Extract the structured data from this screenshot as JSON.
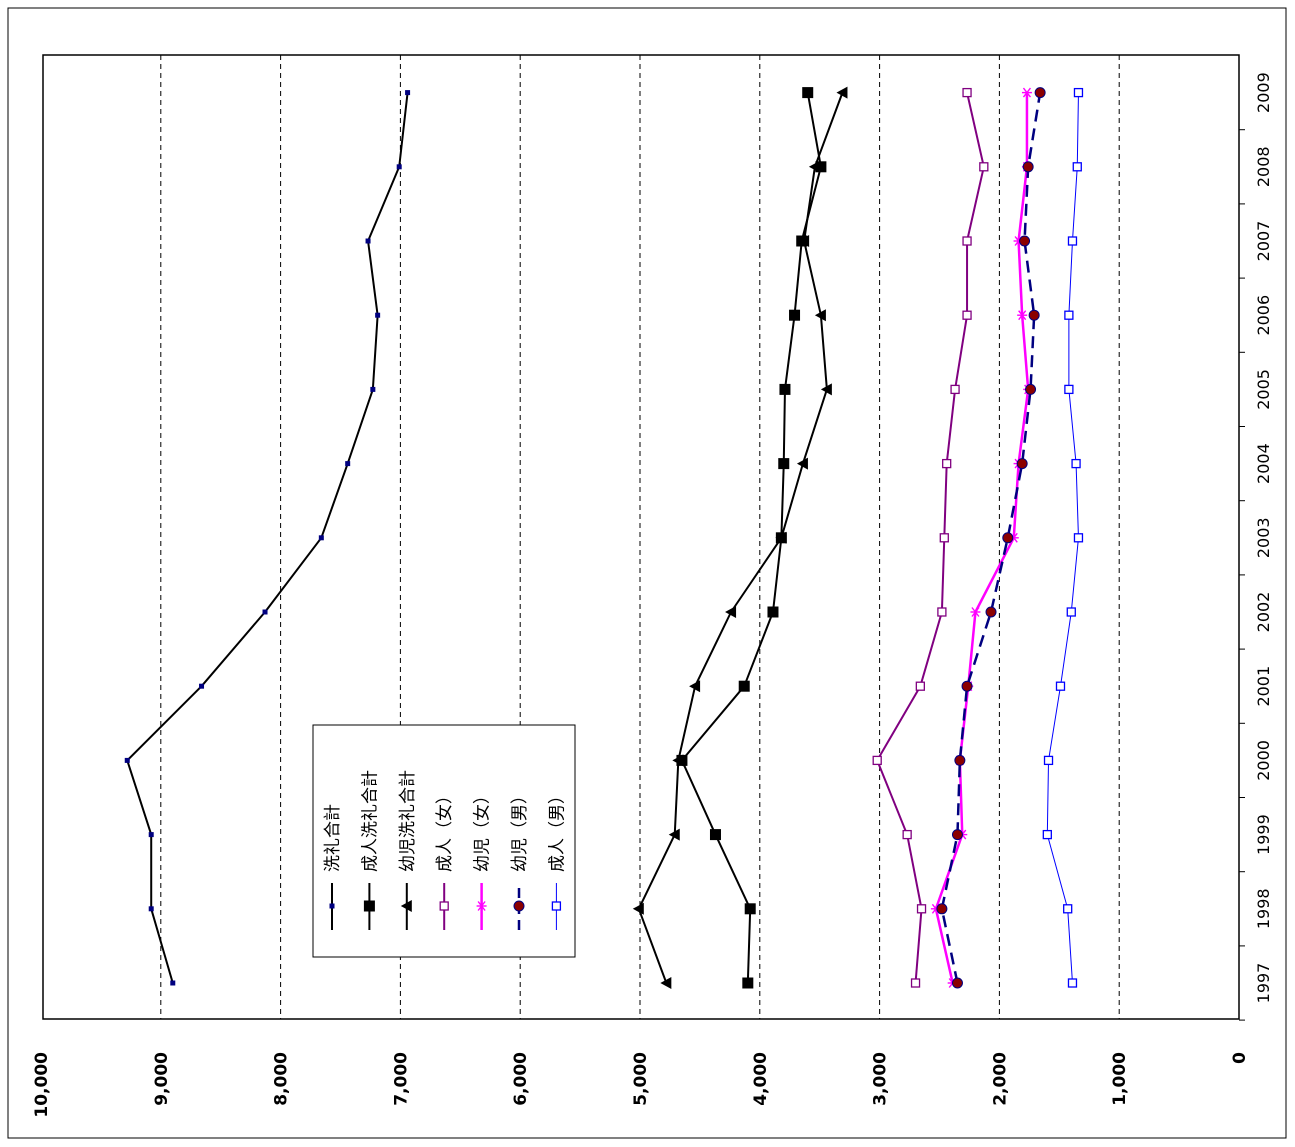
{
  "chart_data": {
    "type": "line",
    "orientation": "rotated-90-clockwise",
    "x": [
      "1997",
      "1998",
      "1999",
      "2000",
      "2001",
      "2002",
      "2003",
      "2004",
      "2005",
      "2006",
      "2007",
      "2008",
      "2009"
    ],
    "y_ticks": [
      "0",
      "1,000",
      "2,000",
      "3,000",
      "4,000",
      "5,000",
      "6,000",
      "7,000",
      "8,000",
      "9,000",
      "10,000"
    ],
    "ylim": [
      0,
      10000
    ],
    "grid": "dashed horizontal gridlines at each 1,000",
    "legend_position": "inside-left",
    "series": [
      {
        "name": "洗礼合計",
        "color": "#000000",
        "marker": "small-square",
        "markerColor": "#000080",
        "dash": "solid",
        "width": 2,
        "values": [
          8900,
          9080,
          9080,
          9280,
          8660,
          8130,
          7660,
          7440,
          7230,
          7190,
          7270,
          7010,
          6940
        ]
      },
      {
        "name": "成人洗礼合計",
        "color": "#000000",
        "marker": "square",
        "markerColor": "#000000",
        "dash": "solid",
        "width": 2,
        "values": [
          4100,
          4080,
          4370,
          4650,
          4130,
          3890,
          3820,
          3800,
          3790,
          3710,
          3650,
          3490,
          3600
        ]
      },
      {
        "name": "幼児洗礼合計",
        "color": "#000000",
        "marker": "triangle",
        "markerColor": "#000000",
        "dash": "solid",
        "width": 2,
        "values": [
          4780,
          5010,
          4710,
          4680,
          4540,
          4240,
          3820,
          3640,
          3440,
          3490,
          3630,
          3540,
          3310
        ]
      },
      {
        "name": "成人（女）",
        "color": "#800080",
        "marker": "open-square",
        "markerColor": "#800080",
        "dash": "solid",
        "width": 2,
        "values": [
          2700,
          2650,
          2770,
          3020,
          2660,
          2480,
          2460,
          2440,
          2370,
          2270,
          2270,
          2130,
          2270
        ]
      },
      {
        "name": "幼児（女）",
        "color": "#FF00FF",
        "marker": "asterisk",
        "markerColor": "#FF00FF",
        "dash": "solid",
        "width": 2.5,
        "values": [
          2390,
          2530,
          2310,
          2330,
          2260,
          2200,
          1880,
          1840,
          1760,
          1810,
          1840,
          1770,
          1770
        ]
      },
      {
        "name": "幼児（男）",
        "color": "#000080",
        "marker": "circle",
        "markerColor": "#8B0000",
        "dash": "dashed",
        "width": 2.5,
        "values": [
          2350,
          2480,
          2350,
          2330,
          2270,
          2070,
          1930,
          1810,
          1740,
          1710,
          1790,
          1760,
          1660
        ]
      },
      {
        "name": "成人（男）",
        "color": "#0000FF",
        "marker": "open-square",
        "markerColor": "#0000FF",
        "dash": "solid",
        "width": 1,
        "values": [
          1390,
          1430,
          1600,
          1590,
          1490,
          1400,
          1340,
          1360,
          1420,
          1420,
          1390,
          1350,
          1340
        ]
      }
    ]
  }
}
